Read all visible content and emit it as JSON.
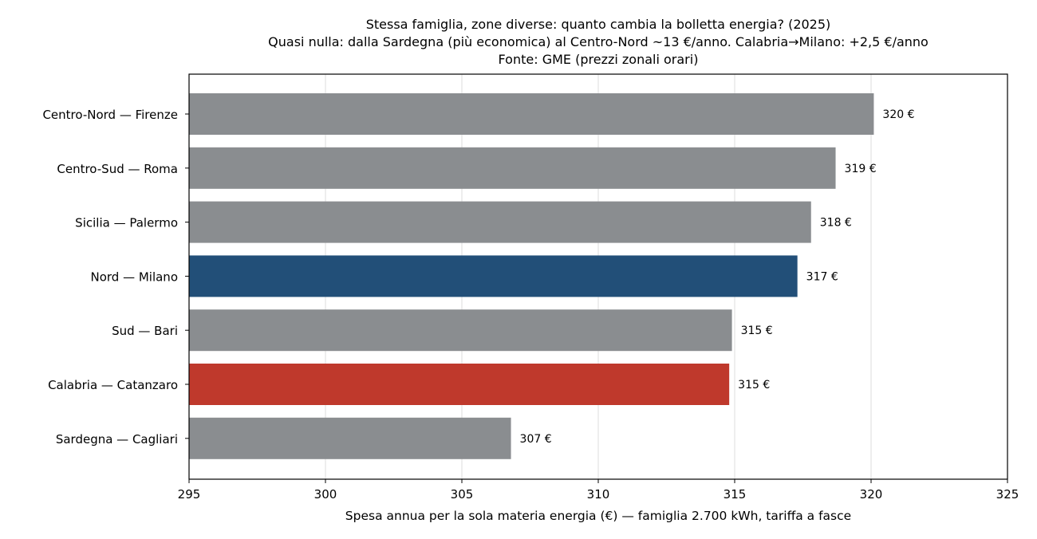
{
  "chart_data": {
    "type": "bar",
    "orientation": "horizontal",
    "title": "Stessa famiglia, zone diverse: quanto cambia la bolletta energia? (2025)",
    "subtitle": "Quasi nulla: dalla Sardegna (più economica) al Centro-Nord ~13 €/anno. Calabria→Milano: +2,5 €/anno",
    "source": "Fonte: GME (prezzi zonali orari)",
    "xlabel": "Spesa annua per la sola materia energia (€) — famiglia 2.700 kWh, tariffa a fasce",
    "ylabel": "",
    "xlim": [
      295,
      325
    ],
    "xticks": [
      295,
      300,
      305,
      310,
      315,
      320,
      325
    ],
    "grid": "vertical",
    "categories": [
      "Centro-Nord — Firenze",
      "Centro-Sud — Roma",
      "Sicilia — Palermo",
      "Nord — Milano",
      "Sud — Bari",
      "Calabria — Catanzaro",
      "Sardegna — Cagliari"
    ],
    "values": [
      320.1,
      318.7,
      317.8,
      317.3,
      314.9,
      314.8,
      306.8
    ],
    "value_labels": [
      "320 €",
      "319 €",
      "318 €",
      "317 €",
      "315 €",
      "315 €",
      "307 €"
    ],
    "colors": [
      "#8a8d90",
      "#8a8d90",
      "#8a8d90",
      "#224f78",
      "#8a8d90",
      "#bf392c",
      "#8a8d90"
    ]
  }
}
